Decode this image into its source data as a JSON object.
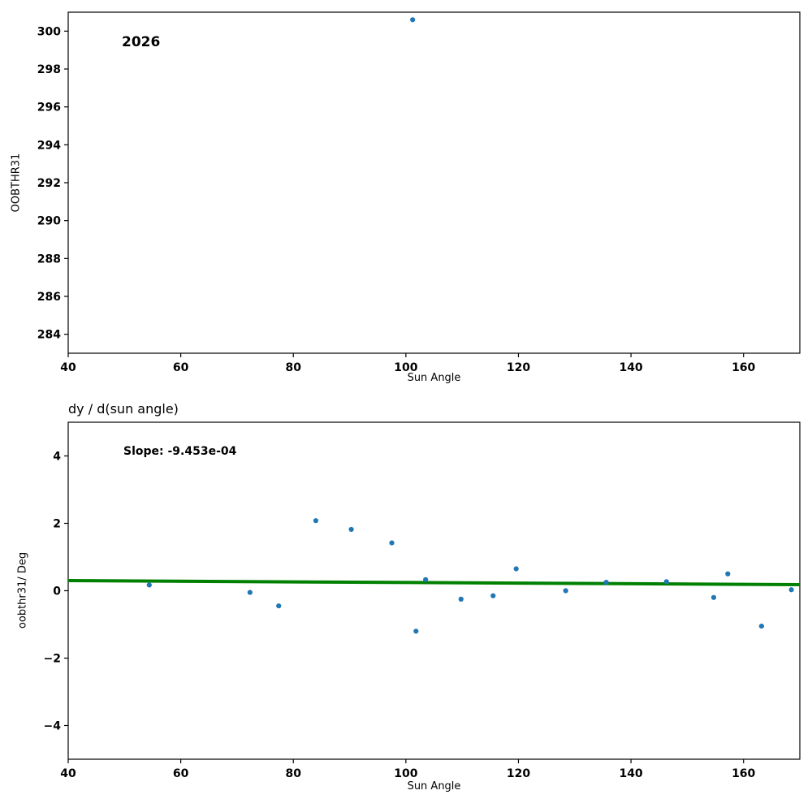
{
  "chart_data": [
    {
      "type": "scatter",
      "title": "",
      "annotation": "2026",
      "xlabel": "Sun Angle",
      "ylabel": "OOBTHR31",
      "xlim": [
        40,
        170
      ],
      "ylim": [
        283,
        301
      ],
      "xticks": [
        40,
        60,
        80,
        100,
        120,
        140,
        160
      ],
      "yticks": [
        284,
        286,
        288,
        290,
        292,
        294,
        296,
        298,
        300
      ],
      "grid": false,
      "legend": "none",
      "marker_color": "#1f77b4",
      "points": [
        [
          101.2,
          300.6
        ]
      ]
    },
    {
      "type": "scatter",
      "title": "dy / d(sun angle)",
      "annotation": "Slope: -9.453e-04",
      "xlabel": "Sun Angle",
      "ylabel": "oobthr31/ Deg",
      "xlim": [
        40,
        170
      ],
      "ylim": [
        -5,
        5
      ],
      "xticks": [
        40,
        60,
        80,
        100,
        120,
        140,
        160
      ],
      "yticks": [
        -4,
        -2,
        0,
        2,
        4
      ],
      "grid": false,
      "legend": "none",
      "marker_color": "#1f77b4",
      "fit_line": {
        "x": [
          40,
          170
        ],
        "y": [
          0.3,
          0.18
        ],
        "slope": -0.0009453,
        "color": "#008000"
      },
      "points": [
        [
          54.4,
          0.17
        ],
        [
          72.3,
          -0.05
        ],
        [
          77.4,
          -0.45
        ],
        [
          84.0,
          2.08
        ],
        [
          90.3,
          1.82
        ],
        [
          97.5,
          1.42
        ],
        [
          101.8,
          -1.2
        ],
        [
          103.5,
          0.33
        ],
        [
          109.8,
          -0.25
        ],
        [
          115.5,
          -0.15
        ],
        [
          119.6,
          0.65
        ],
        [
          128.4,
          0.0
        ],
        [
          135.6,
          0.25
        ],
        [
          146.3,
          0.27
        ],
        [
          154.7,
          -0.2
        ],
        [
          157.2,
          0.5
        ],
        [
          163.2,
          -1.05
        ],
        [
          168.5,
          0.03
        ]
      ]
    }
  ]
}
